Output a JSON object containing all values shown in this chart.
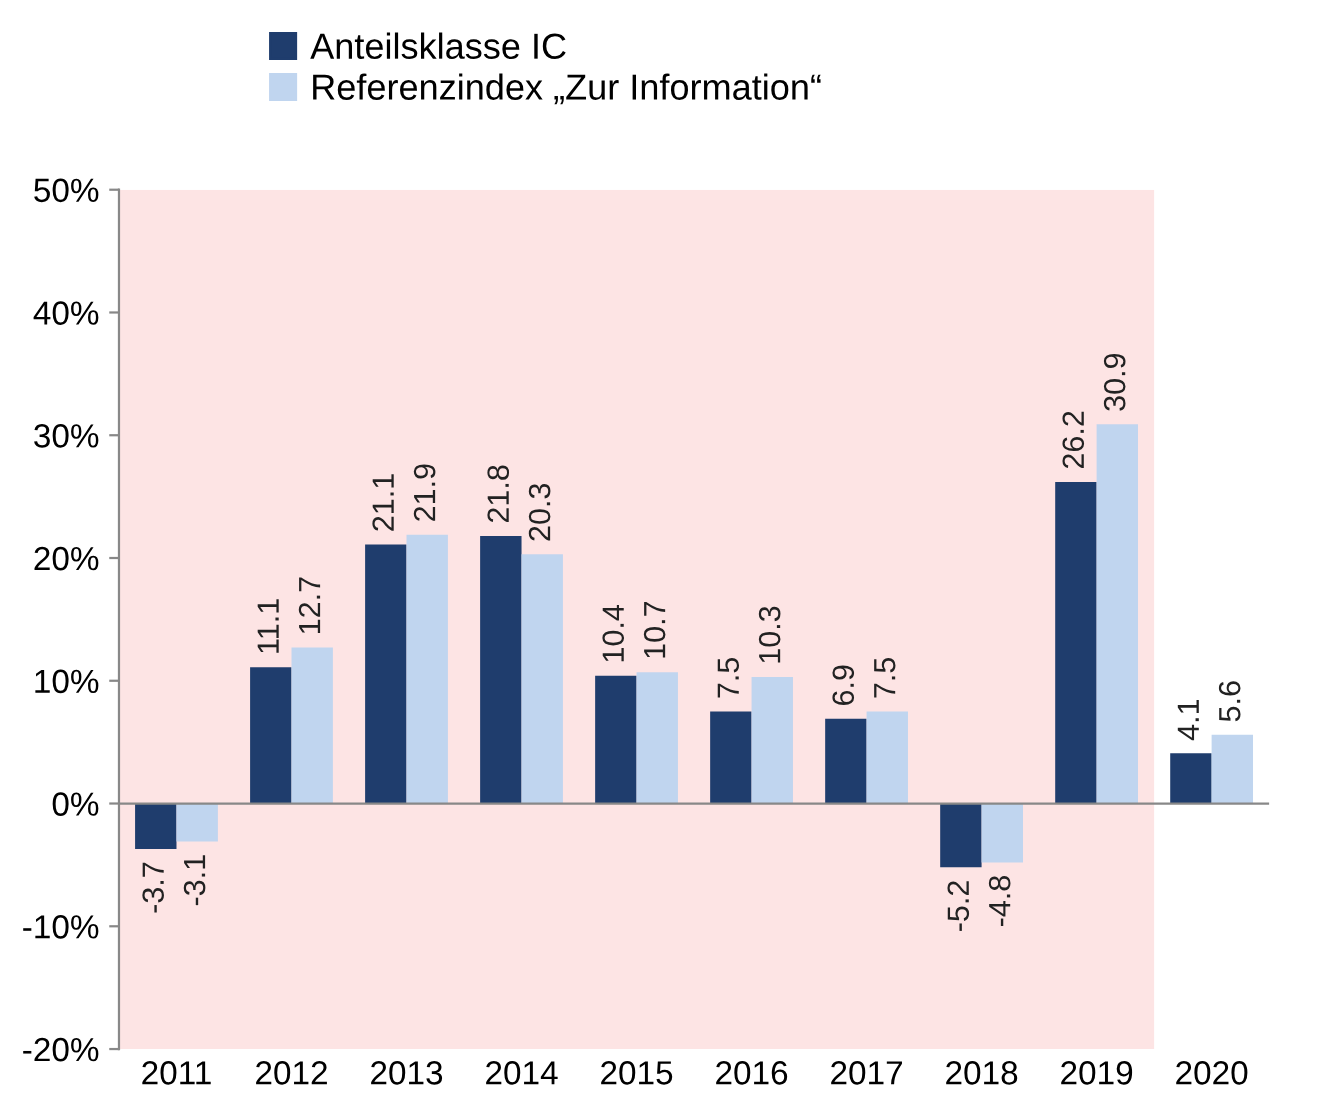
{
  "chart_data": {
    "type": "bar",
    "categories": [
      "2011",
      "2012",
      "2013",
      "2014",
      "2015",
      "2016",
      "2017",
      "2018",
      "2019",
      "2020"
    ],
    "series": [
      {
        "name": "Anteilsklasse IC",
        "color": "#1f3d6d",
        "values": [
          -3.7,
          11.1,
          21.1,
          21.8,
          10.4,
          7.5,
          6.9,
          -5.2,
          26.2,
          4.1
        ]
      },
      {
        "name": "Referenzindex „Zur Information“",
        "color": "#c0d5ef",
        "values": [
          -3.1,
          12.7,
          21.9,
          20.3,
          10.7,
          10.3,
          7.5,
          -4.8,
          30.9,
          5.6
        ]
      }
    ],
    "ylim": [
      -20,
      50
    ],
    "yticks": [
      {
        "value": -20,
        "label": "-20%"
      },
      {
        "value": -10,
        "label": "-10%"
      },
      {
        "value": 0,
        "label": "0%"
      },
      {
        "value": 10,
        "label": "10%"
      },
      {
        "value": 20,
        "label": "20%"
      },
      {
        "value": 30,
        "label": "30%"
      },
      {
        "value": 40,
        "label": "40%"
      },
      {
        "value": 50,
        "label": "50%"
      }
    ],
    "bands": [
      {
        "axis": "x",
        "from": "2011",
        "to": "2019",
        "color": "#fde4e4"
      }
    ],
    "data_labels": true,
    "legend": "top"
  }
}
